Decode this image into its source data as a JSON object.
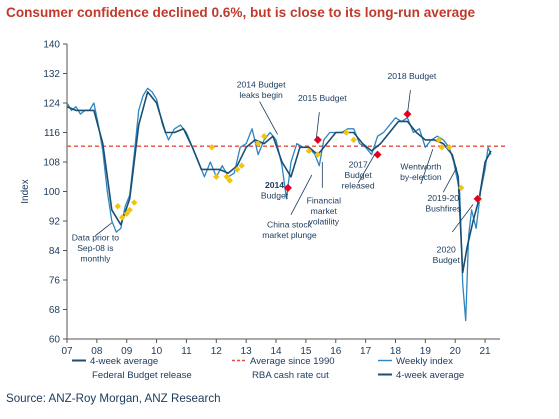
{
  "title": "Consumer confidence declined 0.6%, but is close to its long-run average",
  "source": "Source: ANZ-Roy Morgan, ANZ Research",
  "colors": {
    "title": "#c0392b",
    "weekly": "#2e86c1",
    "avg4w": "#1b4f72",
    "longrun": "#e74c3c",
    "budget": "#e6001f",
    "ratecut": "#f1c40f",
    "text": "#1b3a5c"
  },
  "chart_data": {
    "type": "line",
    "ylabel": "Index",
    "xlabel": "",
    "ylim": [
      60,
      140
    ],
    "yticks": [
      60,
      68,
      76,
      84,
      92,
      100,
      108,
      116,
      124,
      132,
      140
    ],
    "xlim": [
      2007,
      2021.5
    ],
    "xticks": [
      2007,
      2008,
      2009,
      2010,
      2011,
      2012,
      2013,
      2014,
      2015,
      2016,
      2017,
      2018,
      2019,
      2020,
      2021
    ],
    "xtick_labels": [
      "07",
      "08",
      "09",
      "10",
      "11",
      "12",
      "13",
      "14",
      "15",
      "16",
      "17",
      "18",
      "19",
      "20",
      "21"
    ],
    "long_run_average": 112.3,
    "series": [
      {
        "name": "Weekly index",
        "x": [
          2007.0,
          2007.15,
          2007.3,
          2007.45,
          2007.6,
          2007.75,
          2007.9,
          2008.05,
          2008.2,
          2008.35,
          2008.5,
          2008.65,
          2008.8,
          2008.95,
          2009.1,
          2009.25,
          2009.4,
          2009.55,
          2009.7,
          2009.85,
          2010.0,
          2010.2,
          2010.4,
          2010.6,
          2010.8,
          2011.0,
          2011.2,
          2011.4,
          2011.6,
          2011.8,
          2012.0,
          2012.2,
          2012.4,
          2012.6,
          2012.8,
          2013.0,
          2013.2,
          2013.4,
          2013.6,
          2013.8,
          2014.0,
          2014.2,
          2014.35,
          2014.5,
          2014.7,
          2014.9,
          2015.1,
          2015.3,
          2015.45,
          2015.6,
          2015.8,
          2016.0,
          2016.2,
          2016.4,
          2016.6,
          2016.8,
          2017.0,
          2017.2,
          2017.4,
          2017.6,
          2017.8,
          2018.0,
          2018.2,
          2018.4,
          2018.6,
          2018.8,
          2019.0,
          2019.2,
          2019.4,
          2019.6,
          2019.8,
          2019.95,
          2020.05,
          2020.15,
          2020.25,
          2020.35,
          2020.45,
          2020.55,
          2020.7,
          2020.85,
          2021.0,
          2021.1,
          2021.2
        ],
        "values": [
          124,
          122,
          123,
          121,
          122,
          122,
          124,
          118,
          111,
          100,
          92,
          89,
          90,
          96,
          99,
          110,
          122,
          126,
          128,
          127,
          125,
          118,
          114,
          117,
          118,
          116,
          112,
          108,
          104,
          108,
          104,
          107,
          104,
          105,
          112,
          113,
          117,
          110,
          114,
          116,
          114,
          107,
          98,
          108,
          113,
          112,
          112,
          110,
          107,
          114,
          116,
          116,
          116,
          117,
          117,
          113,
          112,
          110,
          115,
          116,
          118,
          120,
          119,
          120,
          116,
          117,
          112,
          114,
          115,
          114,
          112,
          108,
          104,
          100,
          75,
          65,
          88,
          95,
          90,
          100,
          106,
          112,
          110
        ]
      },
      {
        "name": "4-week average",
        "x": [
          2007.0,
          2007.3,
          2007.6,
          2007.9,
          2008.2,
          2008.5,
          2008.8,
          2009.1,
          2009.4,
          2009.7,
          2010.0,
          2010.3,
          2010.6,
          2010.9,
          2011.2,
          2011.5,
          2011.8,
          2012.1,
          2012.4,
          2012.7,
          2013.0,
          2013.3,
          2013.6,
          2013.9,
          2014.2,
          2014.5,
          2014.8,
          2015.1,
          2015.4,
          2015.7,
          2016.0,
          2016.3,
          2016.6,
          2016.9,
          2017.2,
          2017.5,
          2017.8,
          2018.1,
          2018.4,
          2018.7,
          2019.0,
          2019.3,
          2019.6,
          2019.9,
          2020.1,
          2020.25,
          2020.4,
          2020.6,
          2020.8,
          2021.0,
          2021.2
        ],
        "values": [
          123,
          122,
          122,
          122,
          113,
          95,
          91,
          98,
          118,
          127,
          124,
          116,
          116,
          117,
          112,
          106,
          106,
          106,
          105,
          107,
          112,
          114,
          113,
          115,
          108,
          104,
          112,
          112,
          110,
          113,
          116,
          116,
          116,
          113,
          111,
          113,
          116,
          119,
          119,
          116,
          114,
          114,
          113,
          110,
          104,
          78,
          85,
          92,
          98,
          108,
          111
        ]
      }
    ],
    "rba_rate_cuts": {
      "name": "RBA cash rate cut",
      "x": [
        2008.7,
        2008.85,
        2009.0,
        2009.1,
        2009.25,
        2011.85,
        2012.0,
        2012.35,
        2012.45,
        2012.7,
        2012.85,
        2013.4,
        2013.6,
        2015.1,
        2015.4,
        2016.35,
        2016.6,
        2019.45,
        2019.55,
        2019.8,
        2020.2,
        2020.8
      ],
      "values": [
        96,
        93,
        94,
        95,
        97,
        112,
        104,
        104,
        103,
        106,
        107,
        113,
        115,
        111,
        110,
        116,
        114,
        114,
        112,
        112,
        101,
        98
      ]
    },
    "federal_budget_release": {
      "name": "Federal Budget release",
      "x": [
        2014.4,
        2015.4,
        2017.4,
        2018.4,
        2020.75
      ],
      "values": [
        101,
        114,
        110,
        121,
        98
      ]
    },
    "legend": [
      "4-week average",
      "Average since 1990",
      "Weekly index",
      "Federal Budget release",
      "RBA cash rate cut",
      "4-week average"
    ],
    "annotations": [
      {
        "text": "2014 Budget leaks begin",
        "lines": [
          "2014 Budget",
          "leaks begin"
        ],
        "x": 2013.5,
        "y": 128.2
      },
      {
        "text": "2015 Budget",
        "lines": [
          "2015 Budget"
        ],
        "x": 2015.55,
        "y": 124.5
      },
      {
        "text": "2018 Budget",
        "lines": [
          "2018 Budget"
        ],
        "x": 2018.55,
        "y": 130.5
      },
      {
        "text": "2014 Budget",
        "lines": [
          "2014",
          "Budget"
        ],
        "x": 2013.95,
        "y": 101,
        "bold_first": true
      },
      {
        "text": "2017 Budget released",
        "lines": [
          "2017",
          "Budget",
          "released"
        ],
        "x": 2016.75,
        "y": 106.5
      },
      {
        "text": "Wentworth by-election",
        "lines": [
          "Wentworth",
          "by-election"
        ],
        "x": 2018.85,
        "y": 106
      },
      {
        "text": "Financial market volatility",
        "lines": [
          "Financial",
          "market",
          "volatility"
        ],
        "x": 2015.6,
        "y": 96.8
      },
      {
        "text": "China stock market plunge",
        "lines": [
          "China stock",
          "market plunge"
        ],
        "x": 2014.45,
        "y": 90.2
      },
      {
        "text": "Data prior to Sep-08 is monthly",
        "lines": [
          "Data prior to",
          "Sep-08 is",
          "monthly"
        ],
        "x": 2007.95,
        "y": 86.7
      },
      {
        "text": "2019-20 Bushfires",
        "lines": [
          "2019-20",
          "Bushfires"
        ],
        "x": 2019.6,
        "y": 97.4
      },
      {
        "text": "2020 Budget",
        "lines": [
          "2020",
          "Budget"
        ],
        "x": 2019.7,
        "y": 83.5
      }
    ]
  }
}
